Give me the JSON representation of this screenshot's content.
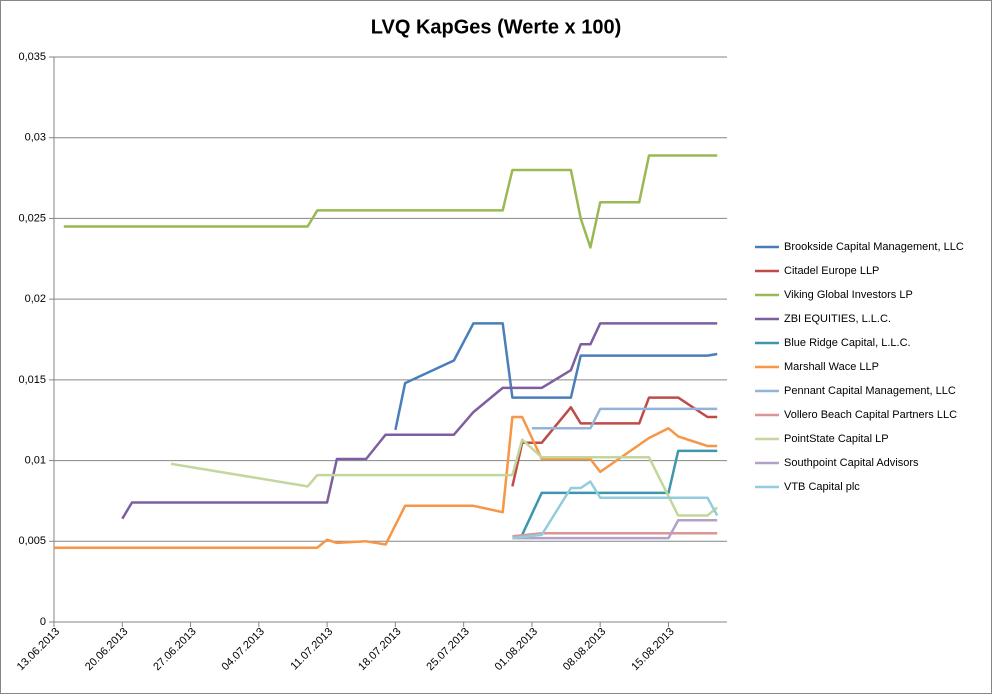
{
  "chart_data": {
    "type": "line",
    "title": "LVQ KapGes (Werte x 100)",
    "xlim": [
      "13.06.2013",
      "21.08.2013"
    ],
    "xticks": [
      "13.06.2013",
      "20.06.2013",
      "27.06.2013",
      "04.07.2013",
      "11.07.2013",
      "18.07.2013",
      "25.07.2013",
      "01.08.2013",
      "08.08.2013",
      "15.08.2013"
    ],
    "ylim": [
      0,
      0.035
    ],
    "yticks": [
      0,
      {
        "value": 0.005,
        "label": "0,005"
      },
      {
        "value": 0.01,
        "label": "0,01"
      },
      {
        "value": 0.015,
        "label": "0,015"
      },
      {
        "value": 0.02,
        "label": "0,02"
      },
      {
        "value": 0.025,
        "label": "0,025"
      },
      {
        "value": 0.03,
        "label": "0,03"
      },
      {
        "value": 0.035,
        "label": "0,035"
      }
    ],
    "grid": true,
    "legend": "right",
    "series": [
      {
        "name": "Brookside Capital Management,  LLC",
        "color": "#4a7ebb",
        "x": [
          "18.07.2013",
          "19.07.2013",
          "24.07.2013",
          "26.07.2013",
          "29.07.2013",
          "30.07.2013",
          "05.08.2013",
          "06.08.2013",
          "19.08.2013",
          "20.08.2013"
        ],
        "values": [
          0.0119,
          0.0148,
          0.0162,
          0.0185,
          0.0185,
          0.0139,
          0.0139,
          0.0165,
          0.0165,
          0.0166
        ]
      },
      {
        "name": "Citadel Europe LLP",
        "color": "#be4b48",
        "x": [
          "30.07.2013",
          "31.07.2013",
          "02.08.2013",
          "05.08.2013",
          "06.08.2013",
          "12.08.2013",
          "13.08.2013",
          "16.08.2013",
          "19.08.2013",
          "20.08.2013"
        ],
        "values": [
          0.0084,
          0.0111,
          0.0111,
          0.0133,
          0.0123,
          0.0123,
          0.0139,
          0.0139,
          0.0127,
          0.0127
        ]
      },
      {
        "name": "Viking Global Investors LP",
        "color": "#98b954",
        "x": [
          "14.06.2013",
          "09.07.2013",
          "10.07.2013",
          "29.07.2013",
          "30.07.2013",
          "05.08.2013",
          "06.08.2013",
          "07.08.2013",
          "08.08.2013",
          "12.08.2013",
          "13.08.2013",
          "20.08.2013"
        ],
        "values": [
          0.0245,
          0.0245,
          0.0255,
          0.0255,
          0.028,
          0.028,
          0.025,
          0.0232,
          0.026,
          0.026,
          0.0289,
          0.0289
        ]
      },
      {
        "name": "ZBI EQUITIES,  L.L.C.",
        "color": "#7d5fa0",
        "x": [
          "20.06.2013",
          "21.06.2013",
          "11.07.2013",
          "12.07.2013",
          "15.07.2013",
          "17.07.2013",
          "24.07.2013",
          "26.07.2013",
          "29.07.2013",
          "02.08.2013",
          "05.08.2013",
          "06.08.2013",
          "07.08.2013",
          "08.08.2013",
          "20.08.2013"
        ],
        "values": [
          0.0064,
          0.0074,
          0.0074,
          0.0101,
          0.0101,
          0.0116,
          0.0116,
          0.013,
          0.0145,
          0.0145,
          0.0156,
          0.0172,
          0.0172,
          0.0185,
          0.0185
        ]
      },
      {
        "name": "Blue Ridge Capital,  L.L.C.",
        "color": "#3d96ae",
        "x": [
          "31.07.2013",
          "02.08.2013",
          "15.08.2013",
          "16.08.2013",
          "20.08.2013"
        ],
        "values": [
          0.0054,
          0.008,
          0.008,
          0.0106,
          0.0106
        ]
      },
      {
        "name": "Marshall Wace LLP",
        "color": "#f79646",
        "x": [
          "13.06.2013",
          "10.07.2013",
          "11.07.2013",
          "12.07.2013",
          "15.07.2013",
          "17.07.2013",
          "19.07.2013",
          "26.07.2013",
          "29.07.2013",
          "30.07.2013",
          "31.07.2013",
          "02.08.2013",
          "07.08.2013",
          "08.08.2013",
          "13.08.2013",
          "15.08.2013",
          "16.08.2013",
          "19.08.2013",
          "20.08.2013"
        ],
        "values": [
          0.0046,
          0.0046,
          0.0051,
          0.0049,
          0.005,
          0.0048,
          0.0072,
          0.0072,
          0.0068,
          0.0127,
          0.0127,
          0.0101,
          0.0101,
          0.0093,
          0.0114,
          0.012,
          0.0115,
          0.0109,
          0.0109
        ]
      },
      {
        "name": "Pennant Capital  Management,  LLC",
        "color": "#95b3d7",
        "x": [
          "01.08.2013",
          "07.08.2013",
          "08.08.2013",
          "20.08.2013"
        ],
        "values": [
          0.012,
          0.012,
          0.0132,
          0.0132
        ]
      },
      {
        "name": "Vollero Beach Capital Partners LLC",
        "color": "#d99694",
        "x": [
          "30.07.2013",
          "02.08.2013",
          "20.08.2013"
        ],
        "values": [
          0.0053,
          0.0055,
          0.0055
        ]
      },
      {
        "name": "PointState Capital LP",
        "color": "#c3d69b",
        "x": [
          "25.06.2013",
          "09.07.2013",
          "10.07.2013",
          "30.07.2013",
          "31.07.2013",
          "02.08.2013",
          "13.08.2013",
          "16.08.2013",
          "19.08.2013",
          "20.08.2013"
        ],
        "values": [
          0.0098,
          0.0084,
          0.0091,
          0.0091,
          0.0113,
          0.0102,
          0.0102,
          0.0066,
          0.0066,
          0.0071
        ]
      },
      {
        "name": "Southpoint Capital Advisors",
        "color": "#b3a2c7",
        "x": [
          "30.07.2013",
          "15.08.2013",
          "16.08.2013",
          "20.08.2013"
        ],
        "values": [
          0.0052,
          0.0052,
          0.0063,
          0.0063
        ]
      },
      {
        "name": "VTB Capital  plc",
        "color": "#93cddd",
        "x": [
          "30.07.2013",
          "02.08.2013",
          "05.08.2013",
          "06.08.2013",
          "07.08.2013",
          "08.08.2013",
          "19.08.2013",
          "20.08.2013"
        ],
        "values": [
          0.0052,
          0.0054,
          0.0083,
          0.0083,
          0.0087,
          0.0077,
          0.0077,
          0.0066
        ]
      }
    ]
  }
}
